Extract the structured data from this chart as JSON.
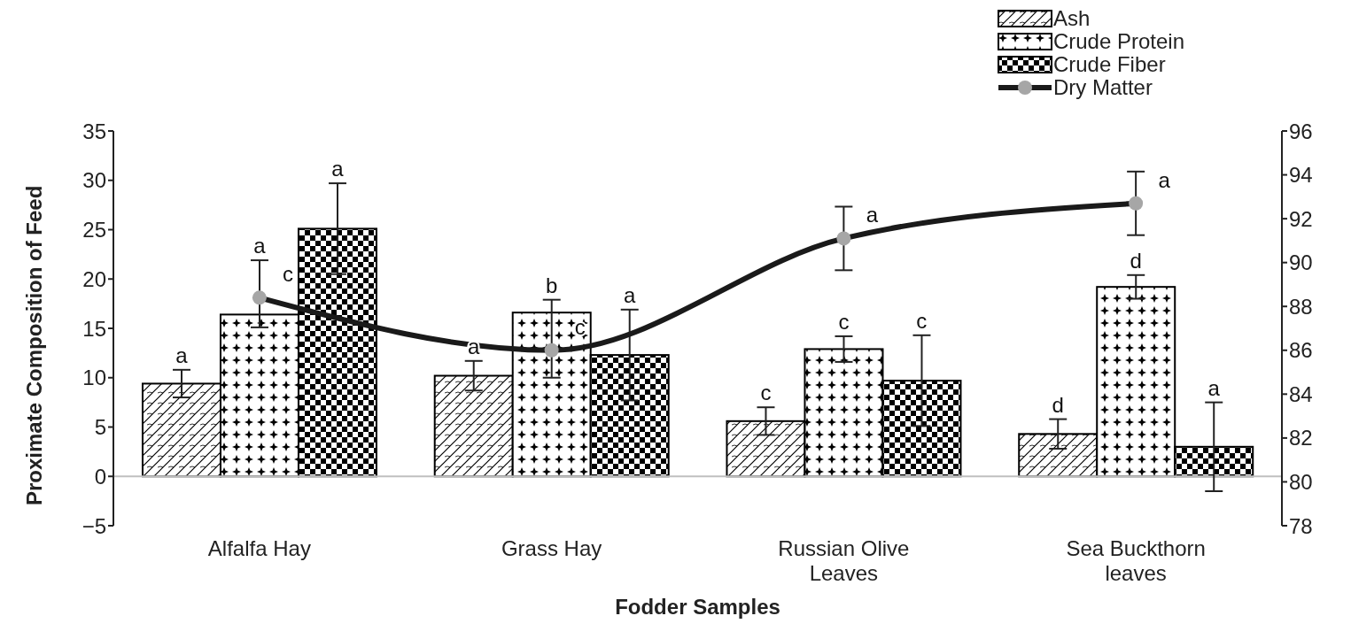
{
  "chart_data": {
    "type": "bar",
    "xlabel": "Fodder Samples",
    "ylabel": "Proximate Composition of Feed",
    "categories": [
      "Alfalfa Hay",
      "Grass Hay",
      "Russian Olive Leaves",
      "Sea Buckthorn leaves"
    ],
    "series": [
      {
        "name": "Ash",
        "color": "#000000",
        "values": [
          9.4,
          10.2,
          5.6,
          4.3
        ],
        "errors": [
          1.4,
          1.5,
          1.4,
          1.5
        ],
        "value_labels": [
          "a",
          "a",
          "c",
          "d"
        ]
      },
      {
        "name": "Crude Protein",
        "color": "#000000",
        "values": [
          16.4,
          16.6,
          12.9,
          19.2
        ],
        "errors": [
          [
            15.1,
            21.9
          ],
          [
            10.0,
            17.9
          ],
          1.3,
          1.2
        ],
        "value_labels": [
          "a",
          "b",
          "c",
          "d"
        ]
      },
      {
        "name": "Crude Fiber",
        "color": "#000000",
        "values": [
          25.1,
          12.3,
          9.7,
          3.0
        ],
        "errors": [
          4.6,
          4.6,
          4.6,
          4.5
        ],
        "value_labels": [
          "a",
          "a",
          "c",
          "a"
        ]
      },
      {
        "name": "Dry Matter",
        "type": "line",
        "axis": "y2",
        "color": "#1a1a1a",
        "marker": "circle",
        "values": [
          88.4,
          86.0,
          91.1,
          92.7
        ],
        "errors": [
          null,
          null,
          1.45,
          1.45
        ],
        "value_labels": [
          "c",
          "c",
          "a",
          "a"
        ]
      }
    ],
    "ylim": [
      -5,
      35
    ],
    "yticks": [
      -5,
      0,
      5,
      10,
      15,
      20,
      25,
      30,
      35
    ],
    "y2lim": [
      78,
      96
    ],
    "y2ticks": [
      78,
      80,
      82,
      84,
      86,
      88,
      90,
      92,
      94,
      96
    ],
    "ref_lines": [
      {
        "axis": "y",
        "value": 0,
        "color": "#bfbfbf"
      }
    ],
    "grid": false,
    "legend": "top right"
  }
}
